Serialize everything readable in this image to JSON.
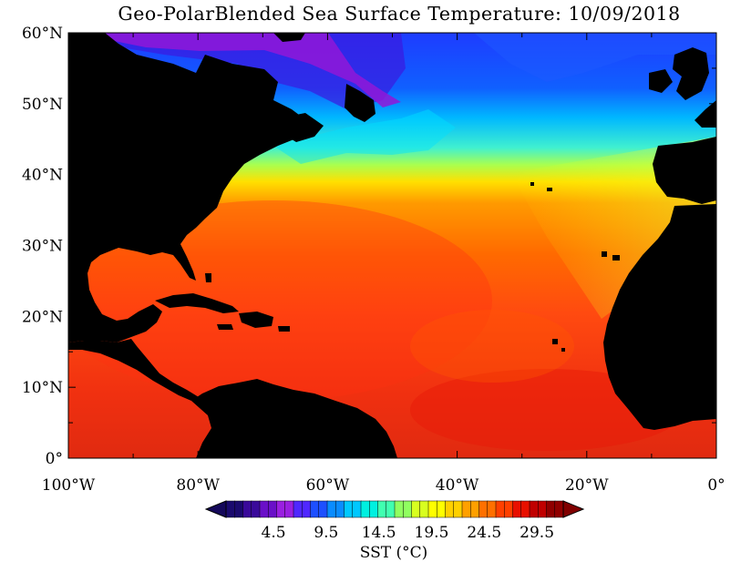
{
  "title": "Geo-PolarBlended Sea Surface Temperature: 10/09/2018",
  "map": {
    "lat_labels": [
      "60°N",
      "50°N",
      "40°N",
      "30°N",
      "20°N",
      "10°N",
      "0°"
    ],
    "lat_values": [
      60,
      50,
      40,
      30,
      20,
      10,
      0
    ],
    "lon_labels": [
      "100°W",
      "80°W",
      "60°W",
      "40°W",
      "20°W",
      "0°"
    ],
    "lon_values": [
      -100,
      -80,
      -60,
      -40,
      -20,
      0
    ],
    "extent": {
      "lon_min": -100,
      "lon_max": 0,
      "lat_min": 0,
      "lat_max": 60
    },
    "land_color": "#000000"
  },
  "colorbar": {
    "label": "SST (°C)",
    "tick_labels": [
      "4.5",
      "9.5",
      "14.5",
      "19.5",
      "24.5",
      "29.5"
    ],
    "tick_values": [
      4.5,
      9.5,
      14.5,
      19.5,
      24.5,
      29.5
    ],
    "range": [
      0,
      32
    ],
    "colors": [
      "#1a0a6e",
      "#3a0a9a",
      "#6a10c8",
      "#9a20e0",
      "#5028ff",
      "#1e50ff",
      "#0a8cff",
      "#00c8ff",
      "#00f0e0",
      "#40ffb0",
      "#90ff60",
      "#d8ff20",
      "#ffff00",
      "#ffd000",
      "#ffa000",
      "#ff7000",
      "#ff4000",
      "#e81000",
      "#c00000",
      "#900000"
    ]
  }
}
